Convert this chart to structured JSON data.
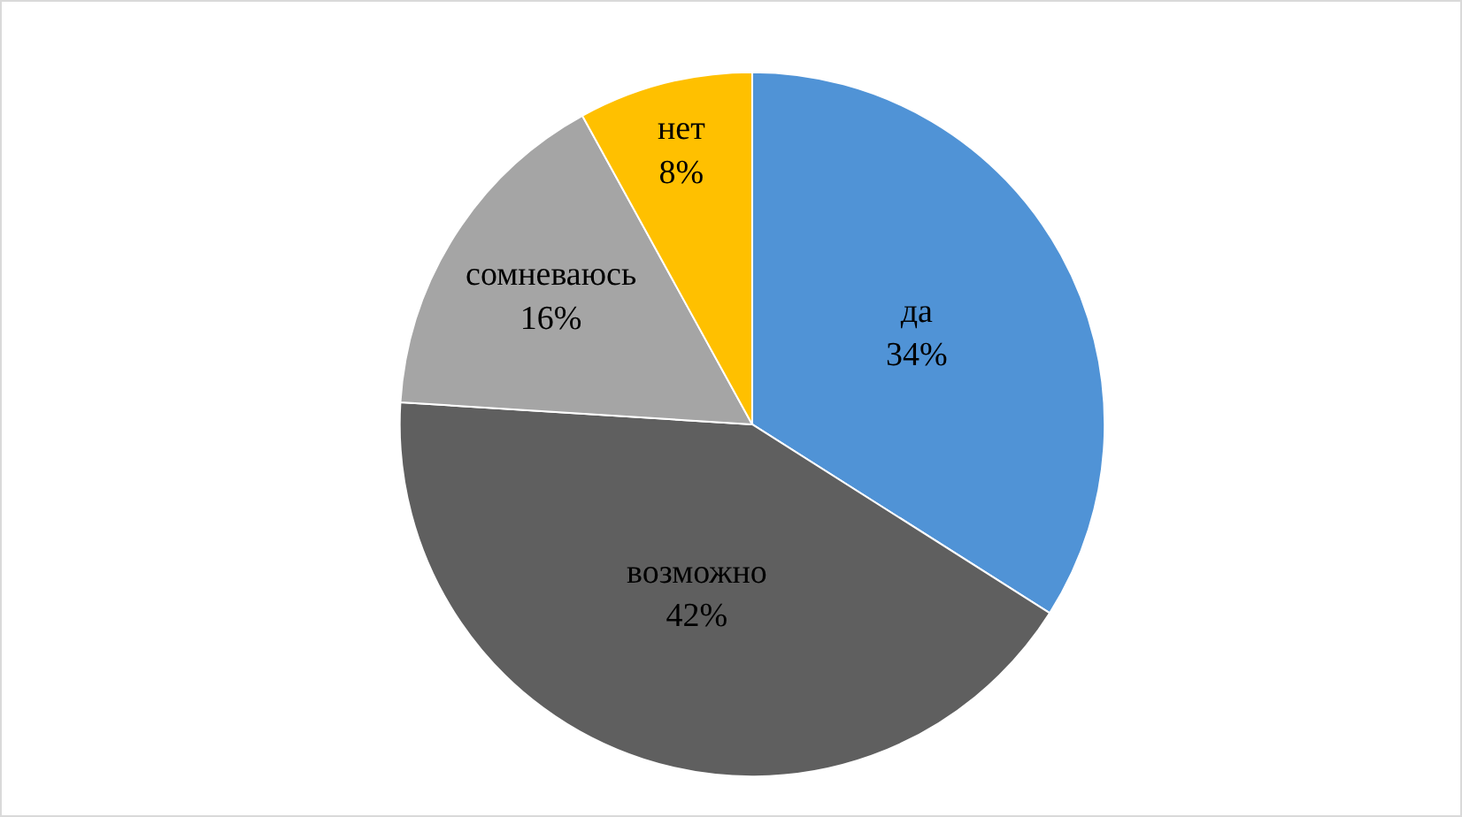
{
  "chart_data": {
    "type": "pie",
    "categories": [
      "да",
      "возможно",
      "сомневаюсь",
      "нет"
    ],
    "values": [
      34,
      42,
      16,
      8
    ],
    "value_labels": [
      "34%",
      "42%",
      "16%",
      "8%"
    ],
    "colors": [
      "#5093d6",
      "#5f5f5f",
      "#a5a5a5",
      "#ffc000"
    ],
    "legend": false
  }
}
